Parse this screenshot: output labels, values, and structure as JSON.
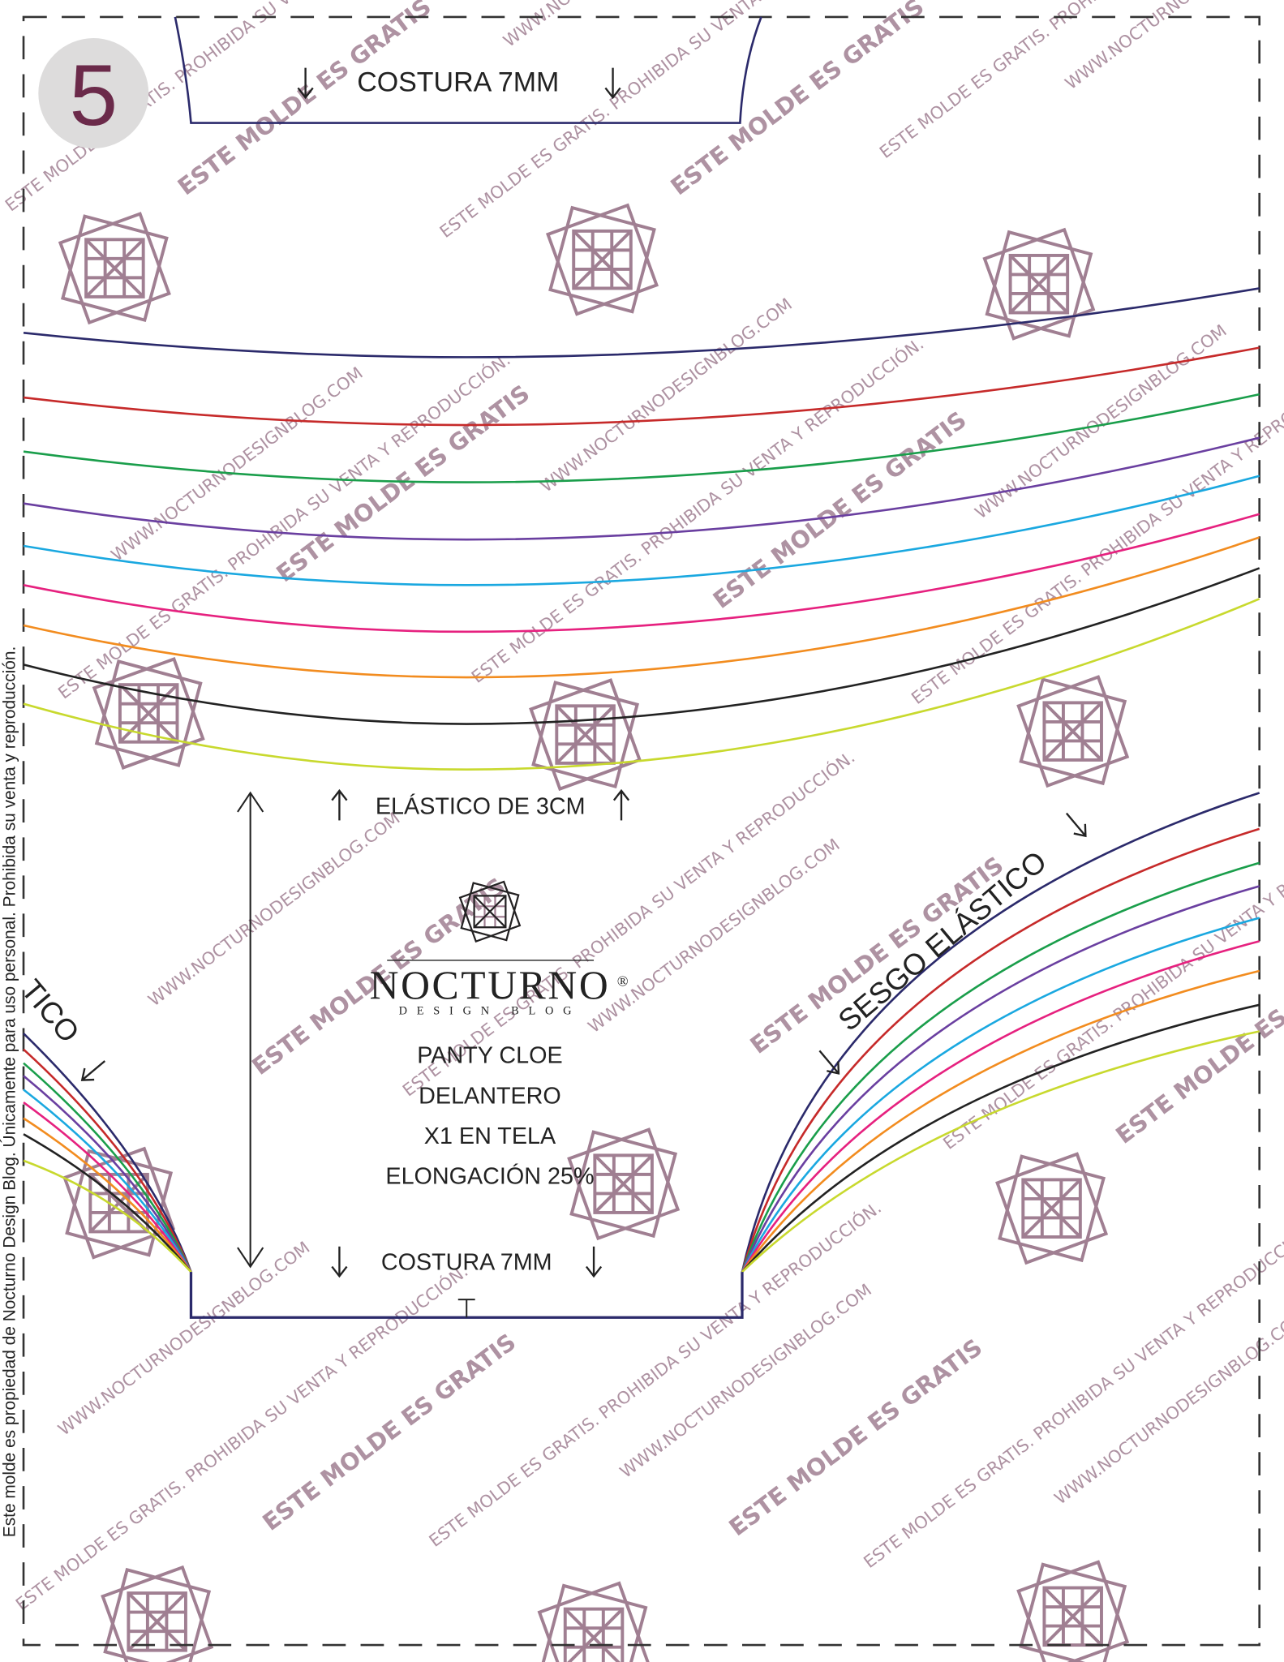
{
  "page_number": "5",
  "top_piece": {
    "label": "COSTURA 7MM"
  },
  "elastic_label": "ELÁSTICO DE 3CM",
  "bias_label": "SESGO ELÁSTICO",
  "left_fragment": "TICO",
  "logo": {
    "name": "NOCTURNO",
    "tagline": "DESIGN BLOG",
    "mark": "®"
  },
  "piece_info": [
    "PANTY CLOE",
    "DELANTERO",
    "X1 EN TELA",
    "ELONGACIÓN 25%"
  ],
  "bottom_label": "COSTURA 7MM",
  "side_notice": "Este molde es propiedad de Nocturno Design Blog. Únicamente para uso personal. Prohibida su venta y reproducción.",
  "watermark": {
    "free": "ESTE MOLDE ES GRATIS",
    "site": "WWW.NOCTURNODESIGNBLOG.COM",
    "notice": "ESTE MOLDE ES GRATIS. PROHIBIDA SU VENTA Y REPRODUCCIÓN."
  }
}
